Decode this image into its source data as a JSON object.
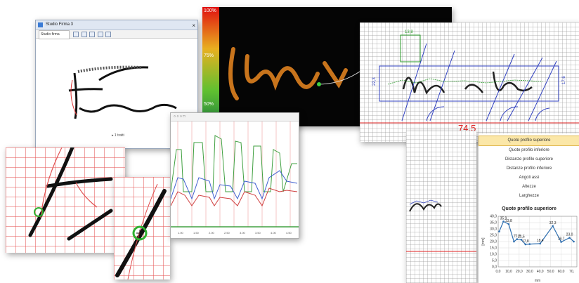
{
  "window_sig": {
    "title": "Studio Firma 3",
    "toolbar_select": "Studio firma",
    "caption": "▸ 1 tratti"
  },
  "pressure_view": {
    "scale_top": "100%",
    "scale_mid": "75%",
    "scale_low": "50%"
  },
  "measure_view": {
    "label_top": "13,8",
    "label_left": "22,3",
    "label_right": "17,6",
    "label_distance": "74,5"
  },
  "graph_window": {
    "toolbar_label": "○ ○ ○ □",
    "x_ticks": [
      "1.00",
      "1.50",
      "2.00",
      "2.50",
      "3.00",
      "3.50",
      "4.00",
      "4.50"
    ]
  },
  "analysis_panel": {
    "menu": [
      "Quote profilo superiore",
      "Quote profilo inferiore",
      "Distanze profilo superiore",
      "Distanze profilo inferiore",
      "Angoli assi",
      "Altezze",
      "Larghezze"
    ],
    "selected_index": 0
  },
  "chart_data": {
    "type": "line",
    "title": "Quote profilo superiore",
    "xlabel": "mm",
    "ylabel": "[mm]",
    "xlim": [
      0,
      75
    ],
    "ylim": [
      0,
      40
    ],
    "x_ticks": [
      "0,0",
      "10,0",
      "20,0",
      "30,0",
      "40,0",
      "50,0",
      "60,0",
      "70,"
    ],
    "y_ticks": [
      "0,0",
      "5,0",
      "10,0",
      "15,0",
      "20,0",
      "25,0",
      "30,0",
      "35,0",
      "40,0"
    ],
    "series": [
      {
        "x": [
          1,
          5,
          10,
          15,
          18,
          22,
          26,
          30,
          40,
          52,
          60,
          68,
          72
        ],
        "y": [
          28,
          35.9,
          33.8,
          20,
          21.9,
          21.5,
          17.8,
          18,
          18.4,
          32.3,
          19.7,
          23,
          20
        ],
        "labels": [
          "",
          "35,9",
          "33,8",
          "",
          "21,9",
          "21,5",
          "17,8",
          "",
          "18,4",
          "32,3",
          "19,7",
          "23,0",
          ""
        ]
      }
    ],
    "color": "#2f6fb0"
  }
}
